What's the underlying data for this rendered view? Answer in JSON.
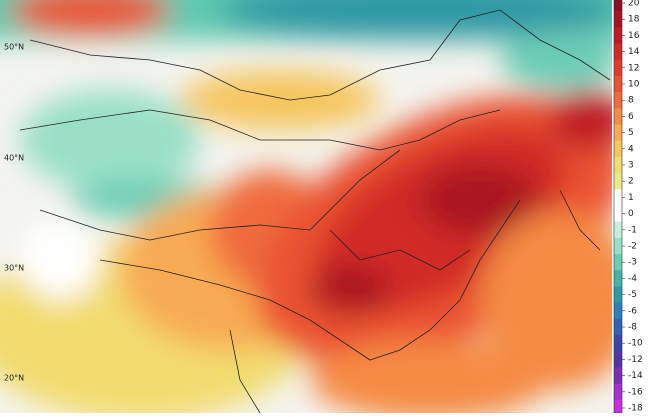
{
  "map": {
    "lat_labels": [
      "50°N",
      "40°N",
      "30°N",
      "20°N"
    ],
    "colorbar": {
      "ticks": [
        20,
        18,
        16,
        14,
        12,
        10,
        8,
        6,
        5,
        4,
        3,
        2,
        1,
        0,
        -1,
        -2,
        -3,
        -4,
        -5,
        -6,
        -8,
        -10,
        -12,
        -14,
        -16,
        -18
      ],
      "colors": [
        "#8e0d1e",
        "#a81322",
        "#c01a25",
        "#d22a26",
        "#e03a2c",
        "#ea5233",
        "#f06c3c",
        "#f58b45",
        "#f8aa52",
        "#f6c65e",
        "#f2dc6e",
        "#e9ea8a",
        "#ffffff",
        "#ffffff",
        "#c9eede",
        "#99e0c7",
        "#6ccdb5",
        "#45b3a8",
        "#2f98a4",
        "#2f7dbb",
        "#3461b4",
        "#3c45a6",
        "#5434a3",
        "#7a2fb5",
        "#a72fd0",
        "#c82fe0"
      ]
    }
  }
}
